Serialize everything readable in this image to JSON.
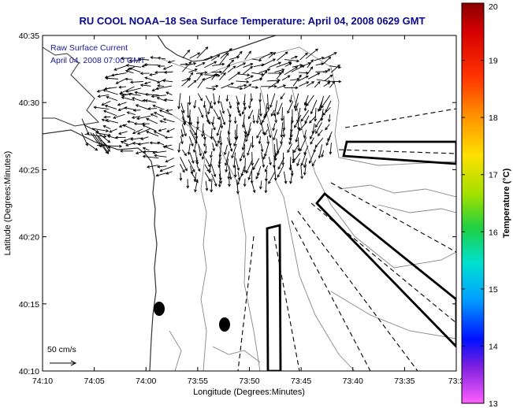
{
  "title": "RU COOL  NOAA–18  Sea Surface Temperature:  April 04, 2008 0629 GMT",
  "legend": {
    "line1": "Raw Surface Current",
    "line2": "April 04, 2008 07:00 GMT"
  },
  "axes": {
    "xlabel": "Longitude (Degrees:Minutes)",
    "ylabel": "Latitude (Degrees:Minutes)",
    "x_ticks": [
      "74:10",
      "74:05",
      "74:00",
      "73:55",
      "73:50",
      "73:45",
      "73:40",
      "73:35",
      "73:3"
    ],
    "y_ticks": [
      "40:35",
      "40:30",
      "40:25",
      "40:20",
      "40:15",
      "40:10"
    ]
  },
  "colorbar": {
    "label": "Temperature (°C)",
    "ticks": [
      "20",
      "19",
      "18",
      "17",
      "16",
      "15",
      "14",
      "13"
    ],
    "min": 13,
    "max": 20
  },
  "scale": {
    "label": "50 cm/s"
  }
}
